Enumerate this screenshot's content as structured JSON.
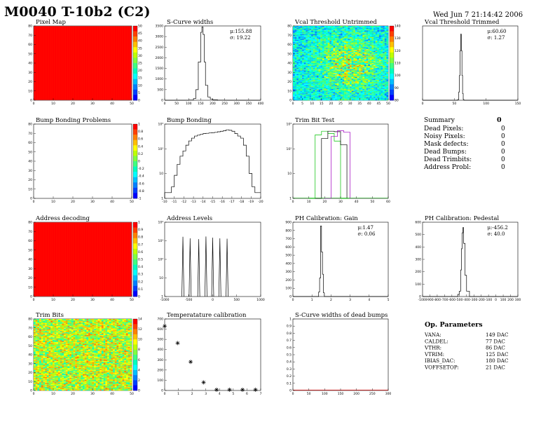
{
  "header": {
    "title": "M0040 T-10b2 (C2)",
    "date": "Wed Jun  7 21:14:42 2006"
  },
  "summary": {
    "title": "Summary",
    "total": "0",
    "rows": [
      {
        "label": "Dead Pixels:",
        "value": "0"
      },
      {
        "label": "Noisy Pixels:",
        "value": "0"
      },
      {
        "label": "Mask defects:",
        "value": "0"
      },
      {
        "label": "Dead Bumps:",
        "value": "0"
      },
      {
        "label": "Dead Trimbits:",
        "value": "0"
      },
      {
        "label": "Address Probl:",
        "value": "0"
      }
    ]
  },
  "op_params": {
    "title": "Op. Parameters",
    "rows": [
      {
        "label": "VANA:",
        "value": "149 DAC"
      },
      {
        "label": "CALDEL:",
        "value": "77 DAC"
      },
      {
        "label": "VTHR:",
        "value": "86 DAC"
      },
      {
        "label": "VTRIM:",
        "value": "125 DAC"
      },
      {
        "label": "IBIAS_DAC:",
        "value": "180 DAC"
      },
      {
        "label": "VOFFSETOP:",
        "value": "21 DAC"
      }
    ]
  },
  "palette": [
    "#ff0000",
    "#ff4000",
    "#ff8000",
    "#ffbf00",
    "#ffff00",
    "#bfff00",
    "#80ff40",
    "#40ff80",
    "#00ffbf",
    "#00ffff",
    "#00bfff",
    "#0080ff",
    "#0040ff",
    "#0000ff"
  ],
  "chart_data": [
    {
      "id": "pixel-map",
      "type": "heatmap",
      "title": "Pixel Map",
      "x_ticks": [
        "0",
        "10",
        "20",
        "30",
        "40",
        "50"
      ],
      "y_ticks": [
        "0",
        "10",
        "20",
        "30",
        "40",
        "50",
        "60",
        "70",
        "80"
      ],
      "z_ticks": [
        "0",
        "5",
        "10",
        "15",
        "20",
        "25",
        "30",
        "35",
        "40",
        "45",
        "50"
      ],
      "fill": "uniform-max",
      "color": "#ff0000"
    },
    {
      "id": "scurve-widths",
      "type": "bar",
      "title": "S-Curve widths",
      "x": [
        0,
        50,
        100,
        120,
        130,
        140,
        150,
        155,
        160,
        165,
        170,
        180,
        190,
        200,
        220,
        250,
        300,
        350,
        400
      ],
      "y": [
        0,
        0,
        10,
        80,
        500,
        1800,
        3200,
        3450,
        3100,
        1800,
        700,
        150,
        60,
        20,
        5,
        0,
        0,
        0,
        0
      ],
      "xlim": [
        0,
        400
      ],
      "ylim": [
        0,
        3500
      ],
      "x_ticks": [
        "0",
        "50",
        "100",
        "150",
        "200",
        "250",
        "300",
        "350",
        "400"
      ],
      "y_ticks": [
        "0",
        "500",
        "1000",
        "1500",
        "2000",
        "2500",
        "3000",
        "3500"
      ],
      "stats": [
        "μ:155.88",
        "σ: 19.22"
      ]
    },
    {
      "id": "vcal-untrimmed",
      "type": "heatmap",
      "title": "Vcal Threshold Untrimmed",
      "x_ticks": [
        "0",
        "5",
        "10",
        "15",
        "20",
        "25",
        "30",
        "35",
        "40",
        "45",
        "50"
      ],
      "y_ticks": [
        "0",
        "10",
        "20",
        "30",
        "40",
        "50",
        "60",
        "70",
        "80"
      ],
      "z_ticks": [
        "80",
        "90",
        "100",
        "110",
        "120",
        "130",
        "140"
      ],
      "fill": "noise"
    },
    {
      "id": "vcal-trimmed",
      "type": "bar",
      "title": "Vcal Threshold Trimmed",
      "x": [
        0,
        50,
        54,
        56,
        57,
        58,
        59,
        60,
        61,
        62,
        63,
        64,
        65,
        70,
        150
      ],
      "y": [
        0,
        0,
        2,
        10,
        100,
        300,
        600,
        800,
        600,
        300,
        80,
        10,
        0,
        0,
        0
      ],
      "xlim": [
        0,
        150
      ],
      "ylim": [
        0,
        900
      ],
      "x_ticks": [
        "0",
        "50",
        "100",
        "150"
      ],
      "y_ticks": [],
      "stats": [
        "μ:60.60",
        "σ: 1.27"
      ]
    },
    {
      "id": "bump-bonding-problems",
      "type": "heatmap",
      "title": "Bump Bonding Problems",
      "x_ticks": [
        "0",
        "10",
        "20",
        "30",
        "40",
        "50"
      ],
      "y_ticks": [
        "0",
        "10",
        "20",
        "30",
        "40",
        "50",
        "60",
        "70",
        "80"
      ],
      "z_ticks": [
        "-1",
        "-0.8",
        "-0.6",
        "-0.4",
        "-0.2",
        "0",
        "0.2",
        "0.4",
        "0.6",
        "0.8",
        "1"
      ],
      "fill": "empty"
    },
    {
      "id": "bump-bonding",
      "type": "bar",
      "title": "Bump Bonding",
      "x": [
        -1.8,
        -1.72,
        -1.66,
        -1.6,
        -1.54,
        -1.48,
        -1.42,
        -1.36,
        -1.3,
        -1.24,
        -1.18,
        -1.12,
        -1.06,
        -1.0,
        -0.94,
        -0.88,
        -0.82,
        -0.76,
        -0.7,
        -0.64,
        -0.58,
        -0.52,
        -0.46,
        -0.4,
        -0.34,
        -0.28,
        -0.22,
        -0.16,
        -0.1,
        -0.04,
        0.02,
        0.08
      ],
      "y": [
        1,
        1,
        2,
        8,
        30,
        80,
        150,
        300,
        500,
        700,
        900,
        1000,
        1100,
        1200,
        1250,
        1300,
        1350,
        1400,
        1500,
        1600,
        1700,
        1900,
        1800,
        1600,
        1200,
        900,
        700,
        300,
        80,
        10,
        2,
        1
      ],
      "log_y": true,
      "xlim": [
        -1.8,
        0.2
      ],
      "x_ticks": [
        "-10",
        "-11",
        "-12",
        "-13",
        "-14",
        "-15",
        "-16",
        "-17",
        "-18",
        "-19",
        "-20"
      ],
      "y_ticks": [
        "1",
        "10",
        "10²",
        "10³"
      ]
    },
    {
      "id": "trim-bit-test",
      "type": "line",
      "title": "Trim Bit Test",
      "series": [
        {
          "color": "#00c000",
          "x": [
            10,
            14,
            18,
            22,
            26,
            30,
            35
          ],
          "y": [
            0,
            600,
            900,
            700,
            300,
            0,
            0
          ]
        },
        {
          "color": "#000000",
          "x": [
            14,
            18,
            22,
            26,
            30,
            34
          ],
          "y": [
            0,
            400,
            900,
            850,
            200,
            0
          ]
        },
        {
          "color": "#a000c0",
          "x": [
            20,
            24,
            28,
            32,
            36
          ],
          "y": [
            0,
            500,
            950,
            800,
            0
          ]
        }
      ],
      "log_y": true,
      "xlim": [
        0,
        60
      ],
      "x_ticks": [
        "0",
        "10",
        "20",
        "30",
        "40",
        "50",
        "60"
      ],
      "y_ticks": [
        "1",
        "10",
        "10²",
        "10³"
      ]
    },
    {
      "id": "address-decoding",
      "type": "heatmap",
      "title": "Address decoding",
      "x_ticks": [
        "0",
        "10",
        "20",
        "30",
        "40",
        "50"
      ],
      "y_ticks": [
        "0",
        "10",
        "20",
        "30",
        "40",
        "50",
        "60",
        "70",
        "80"
      ],
      "z_ticks": [
        "0",
        "0.1",
        "0.2",
        "0.3",
        "0.4",
        "0.5",
        "0.6",
        "0.7",
        "0.8",
        "0.9",
        "1"
      ],
      "fill": "uniform-max",
      "color": "#ff0000"
    },
    {
      "id": "address-levels",
      "type": "line",
      "title": "Address Levels",
      "peaks": [
        -620,
        -470,
        -290,
        -140,
        0,
        150,
        300
      ],
      "heights": [
        2500,
        2000,
        1800,
        2600,
        2200,
        2000,
        1900
      ],
      "log_y": true,
      "xlim": [
        -1000,
        1000
      ],
      "x_ticks": [
        "-1000",
        "-500",
        "0",
        "500",
        "1000"
      ],
      "y_ticks": [
        "1",
        "10",
        "10²",
        "10³",
        "10⁴"
      ]
    },
    {
      "id": "ph-gain",
      "type": "bar",
      "title": "PH Calibration: Gain",
      "x": [
        0,
        1.3,
        1.35,
        1.4,
        1.45,
        1.5,
        1.55,
        1.6,
        1.65,
        5
      ],
      "y": [
        0,
        0,
        60,
        250,
        950,
        600,
        300,
        50,
        0,
        0
      ],
      "xlim": [
        0,
        5
      ],
      "ylim": [
        0,
        1000
      ],
      "x_ticks": [
        "0",
        "1",
        "2",
        "3",
        "4",
        "5"
      ],
      "y_ticks": [
        "0",
        "100",
        "200",
        "300",
        "400",
        "500",
        "600",
        "700",
        "800",
        "900"
      ],
      "stats": [
        "μ:1.47",
        "σ: 0.06"
      ]
    },
    {
      "id": "ph-pedestal",
      "type": "bar",
      "title": "PH Calibration: Pedestal",
      "x": [
        -1000,
        -560,
        -520,
        -500,
        -480,
        -470,
        -460,
        -450,
        -440,
        -420,
        -400,
        -360,
        300
      ],
      "y": [
        0,
        0,
        20,
        50,
        250,
        450,
        600,
        650,
        500,
        200,
        50,
        0,
        0
      ],
      "xlim": [
        -1000,
        300
      ],
      "ylim": [
        0,
        700
      ],
      "x_ticks": [
        "-1000",
        "-900",
        "-800",
        "-700",
        "-600",
        "-500",
        "-400",
        "-300",
        "-200",
        "-100",
        "0",
        "100",
        "200",
        "300"
      ],
      "y_ticks": [
        "0",
        "100",
        "200",
        "300",
        "400",
        "500",
        "600"
      ],
      "stats": [
        "μ:-456.2",
        "σ: 40.0"
      ]
    },
    {
      "id": "trim-bits",
      "type": "heatmap",
      "title": "Trim Bits",
      "x_ticks": [
        "0",
        "10",
        "20",
        "30",
        "40",
        "50"
      ],
      "y_ticks": [
        "0",
        "10",
        "20",
        "30",
        "40",
        "50",
        "60",
        "70",
        "80"
      ],
      "z_ticks": [
        "0",
        "2",
        "4",
        "6",
        "8",
        "10",
        "12",
        "14"
      ],
      "fill": "trim-noise"
    },
    {
      "id": "temperature-calibration",
      "type": "scatter",
      "title": "Temperatature calibration",
      "x": [
        0,
        1,
        2,
        3,
        4,
        5,
        6,
        7
      ],
      "y": [
        720,
        530,
        320,
        90,
        8,
        8,
        8,
        8
      ],
      "xlim": [
        0,
        7.4
      ],
      "ylim": [
        0,
        800
      ],
      "x_ticks": [
        "0",
        "1",
        "2",
        "3",
        "4",
        "5",
        "6",
        "7"
      ],
      "y_ticks": [
        "0",
        "100",
        "200",
        "300",
        "400",
        "500",
        "600",
        "700"
      ]
    },
    {
      "id": "scurve-dead-bumps",
      "type": "bar",
      "title": "S-Curve widths of dead bumps",
      "x": [
        0,
        300
      ],
      "y": [
        0,
        0
      ],
      "xlim": [
        0,
        300
      ],
      "ylim": [
        0,
        1
      ],
      "x_ticks": [
        "0",
        "50",
        "100",
        "150",
        "200",
        "250",
        "300"
      ],
      "y_ticks": [
        "0",
        "0.1",
        "0.2",
        "0.3",
        "0.4",
        "0.5",
        "0.6",
        "0.7",
        "0.8",
        "0.9",
        "1"
      ]
    }
  ]
}
